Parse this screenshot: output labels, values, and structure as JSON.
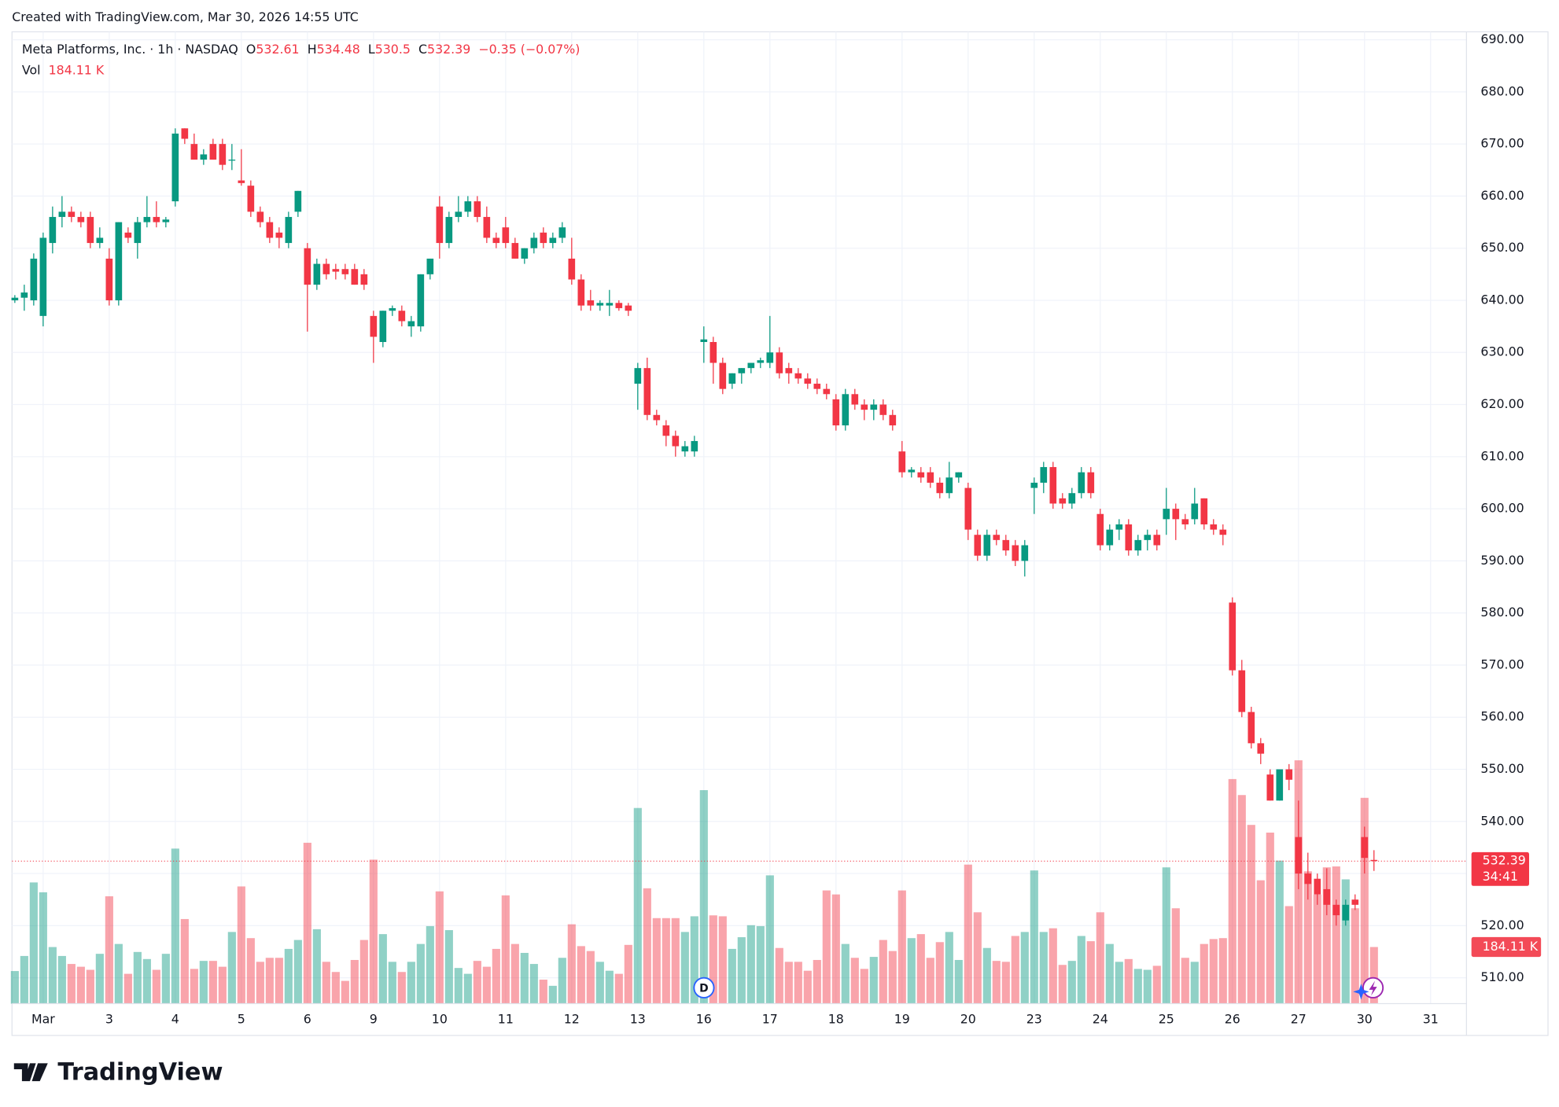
{
  "header": {
    "created": "Created with TradingView.com, Mar 30, 2026 14:55 UTC",
    "ohlc_labels": [
      "O",
      "H",
      "L",
      "C"
    ],
    "change": "−0.35 (−0.07%)",
    "vol_title": "Vol",
    "vol_value": "184.11 K",
    "countdown": "34:41",
    "event": "D",
    "logo": "TradingView"
  },
  "chart_data": {
    "type": "candlestick",
    "title": "Meta Platforms, Inc. · 1h · NASDAQ",
    "up_color": "#089981",
    "down_color": "#f23645",
    "grid": true,
    "xlim": [
      -0.3,
      153.8
    ],
    "xticks": [
      {
        "value": 3,
        "label": "Mar"
      },
      {
        "value": 10,
        "label": "3"
      },
      {
        "value": 17,
        "label": "4"
      },
      {
        "value": 24,
        "label": "5"
      },
      {
        "value": 31,
        "label": "6"
      },
      {
        "value": 38,
        "label": "9"
      },
      {
        "value": 45,
        "label": "10"
      },
      {
        "value": 52,
        "label": "11"
      },
      {
        "value": 59,
        "label": "12"
      },
      {
        "value": 66,
        "label": "13"
      },
      {
        "value": 73,
        "label": "16"
      },
      {
        "value": 80,
        "label": "17"
      },
      {
        "value": 87,
        "label": "18"
      },
      {
        "value": 94,
        "label": "19"
      },
      {
        "value": 101,
        "label": "20"
      },
      {
        "value": 108,
        "label": "23"
      },
      {
        "value": 115,
        "label": "24"
      },
      {
        "value": 122,
        "label": "25"
      },
      {
        "value": 129,
        "label": "26"
      },
      {
        "value": 136,
        "label": "27"
      },
      {
        "value": 143,
        "label": "30"
      },
      {
        "value": 150,
        "label": "31"
      }
    ],
    "ylim": [
      505.03,
      691.53
    ],
    "yticks": [
      {
        "value": 510,
        "label": "510.00"
      },
      {
        "value": 520,
        "label": "520.00"
      },
      {
        "value": 530,
        "label": "530.00"
      },
      {
        "value": 540,
        "label": "540.00"
      },
      {
        "value": 550,
        "label": "550.00"
      },
      {
        "value": 560,
        "label": "560.00"
      },
      {
        "value": 570,
        "label": "570.00"
      },
      {
        "value": 580,
        "label": "580.00"
      },
      {
        "value": 590,
        "label": "590.00"
      },
      {
        "value": 600,
        "label": "600.00"
      },
      {
        "value": 610,
        "label": "610.00"
      },
      {
        "value": 620,
        "label": "620.00"
      },
      {
        "value": 630,
        "label": "630.00"
      },
      {
        "value": 640,
        "label": "640.00"
      },
      {
        "value": 650,
        "label": "650.00"
      },
      {
        "value": 660,
        "label": "660.00"
      },
      {
        "value": 670,
        "label": "670.00"
      },
      {
        "value": 680,
        "label": "680.00"
      },
      {
        "value": 690,
        "label": "690.00"
      }
    ],
    "volume_ylim": [
      0,
      3159
    ],
    "open": [
      640,
      640.5,
      640,
      637,
      651,
      656,
      657,
      656,
      656,
      651,
      648,
      640,
      653,
      651,
      655,
      656,
      655,
      659,
      673,
      670,
      667,
      670,
      670,
      667,
      663,
      662,
      657,
      655,
      653,
      651,
      657,
      650,
      643,
      647,
      646,
      646,
      646,
      645,
      637,
      632,
      638,
      638,
      635,
      635,
      645,
      658,
      651,
      656,
      657,
      659,
      656,
      652,
      654,
      651,
      648,
      650,
      653,
      651,
      652,
      648,
      644,
      640,
      639,
      639,
      639.5,
      639,
      624,
      627,
      618,
      616,
      614,
      611,
      611,
      632,
      632,
      628,
      624,
      626,
      627,
      628,
      628,
      630,
      627,
      626,
      625,
      624,
      623,
      621,
      616,
      622,
      620,
      619,
      620,
      618,
      611,
      607,
      607,
      607,
      605,
      603,
      606,
      604,
      595,
      591,
      595,
      594,
      593,
      590,
      604,
      605,
      608,
      602,
      601,
      603,
      607,
      599,
      593,
      596,
      597,
      592,
      594,
      595,
      598,
      600,
      598,
      598,
      602,
      597,
      596,
      582,
      569,
      561,
      555,
      549,
      544,
      550,
      537,
      530,
      529,
      527,
      524,
      521,
      525,
      537,
      532.61
    ],
    "high": [
      641,
      643,
      649,
      653,
      658,
      660,
      658,
      657,
      657,
      654,
      650,
      655,
      654,
      656,
      660,
      659,
      656,
      673,
      673,
      672,
      669,
      671,
      671,
      670,
      669,
      663,
      658,
      656,
      654,
      657,
      661,
      651,
      648,
      648,
      647,
      647,
      647,
      646,
      638,
      638,
      639,
      639,
      637,
      645,
      648,
      660,
      657,
      660,
      660,
      660,
      658,
      653,
      656,
      652,
      650,
      653,
      654,
      653,
      655,
      652,
      645,
      642,
      640,
      642,
      640,
      639.5,
      628,
      629,
      619,
      617,
      615,
      613,
      614,
      635,
      633,
      629,
      626,
      627,
      628,
      629,
      637,
      631,
      628,
      627,
      626,
      625,
      624,
      622,
      623,
      623,
      621,
      621,
      621,
      619,
      613,
      608,
      608,
      608,
      606,
      609,
      607,
      605,
      596,
      596,
      596,
      595,
      594,
      594,
      606,
      609,
      609,
      603,
      604,
      608,
      608,
      600,
      597,
      598,
      598,
      595,
      596,
      596,
      604,
      601,
      599,
      604,
      602,
      598,
      597,
      583,
      571,
      562,
      556,
      550,
      550,
      551,
      544,
      534,
      530,
      531,
      525,
      525,
      526,
      539,
      534.48
    ],
    "low": [
      639.5,
      638,
      639,
      635,
      649,
      654,
      655,
      654,
      650,
      650,
      639,
      639,
      651,
      648,
      654,
      654,
      654,
      658,
      670,
      667,
      666,
      667,
      665,
      665,
      662,
      656,
      654,
      651,
      650,
      650,
      656,
      634,
      642,
      644,
      644,
      644,
      643,
      642,
      628,
      631,
      637,
      635,
      633,
      634,
      644,
      648,
      650,
      655,
      656,
      655,
      651,
      650,
      650,
      648,
      647,
      649,
      650,
      650,
      651,
      643,
      638,
      638,
      638,
      637,
      638,
      637,
      619,
      617,
      616,
      612,
      610,
      610,
      610,
      628,
      624,
      622,
      623,
      624,
      626,
      627,
      627,
      625,
      624,
      624,
      623,
      622,
      621,
      615,
      615,
      619,
      617,
      617,
      617,
      615,
      606,
      606,
      605,
      604,
      602,
      602,
      605,
      594,
      590,
      590,
      593,
      591,
      589,
      587,
      599,
      603,
      600,
      600,
      600,
      602,
      602,
      592,
      592,
      594,
      591,
      591,
      592,
      592,
      595,
      594,
      596,
      597,
      596,
      595,
      593,
      568,
      560,
      554,
      551,
      544,
      544,
      546,
      527,
      525,
      524,
      522,
      520,
      520,
      523,
      530,
      530.5
    ],
    "close": [
      640.5,
      641.5,
      648,
      652,
      656,
      657,
      656,
      655,
      651,
      652,
      640,
      655,
      652,
      655,
      656,
      655,
      655.5,
      672,
      671,
      667,
      668,
      667,
      666,
      667,
      662.5,
      657,
      655,
      652,
      652,
      656,
      661,
      643,
      647,
      645,
      645.5,
      645,
      643,
      643,
      633,
      638,
      638.5,
      636,
      636,
      645,
      648,
      651,
      656,
      657,
      659,
      656,
      652,
      651,
      651,
      648,
      650,
      652,
      651,
      652,
      654,
      644,
      639,
      639,
      639.5,
      639.5,
      638.5,
      638,
      627,
      618,
      617,
      614,
      612,
      612,
      613,
      632.5,
      628,
      623,
      626,
      627,
      628,
      628.5,
      630,
      626,
      626,
      625,
      624,
      623,
      622,
      616,
      622,
      620,
      619,
      620,
      618,
      616,
      607,
      607.5,
      606,
      605,
      603,
      606,
      607,
      596,
      591,
      595,
      594,
      592,
      590,
      593,
      605,
      608,
      601,
      601,
      603,
      607,
      603,
      593,
      596,
      597,
      592,
      594,
      595,
      593,
      600,
      598,
      597,
      601,
      597,
      596,
      595,
      569,
      561,
      555,
      553,
      544,
      550,
      548,
      530,
      528,
      526,
      524,
      522,
      524,
      524,
      533,
      532.39
    ],
    "volume": [
      106,
      155,
      394,
      362,
      184,
      155,
      129,
      120,
      110,
      162,
      349,
      194,
      97,
      168,
      145,
      110,
      162,
      504,
      275,
      113,
      139,
      139,
      120,
      233,
      381,
      213,
      136,
      149,
      149,
      178,
      207,
      523,
      242,
      136,
      103,
      74,
      142,
      207,
      468,
      226,
      136,
      103,
      136,
      194,
      252,
      365,
      239,
      116,
      97,
      139,
      120,
      178,
      352,
      194,
      165,
      129,
      78,
      58,
      149,
      258,
      187,
      171,
      136,
      107,
      97,
      191,
      636,
      375,
      278,
      278,
      278,
      233,
      284,
      694,
      287,
      284,
      178,
      216,
      255,
      252,
      417,
      181,
      136,
      136,
      107,
      142,
      368,
      355,
      194,
      149,
      113,
      152,
      207,
      171,
      368,
      213,
      226,
      149,
      200,
      233,
      142,
      452,
      297,
      181,
      139,
      136,
      220,
      233,
      433,
      233,
      245,
      126,
      139,
      220,
      203,
      297,
      194,
      136,
      145,
      113,
      110,
      123,
      443,
      310,
      149,
      136,
      194,
      210,
      213,
      730,
      678,
      581,
      401,
      556,
      465,
      317,
      791,
      430,
      355,
      443,
      446,
      404,
      310,
      669,
      184.11
    ]
  }
}
